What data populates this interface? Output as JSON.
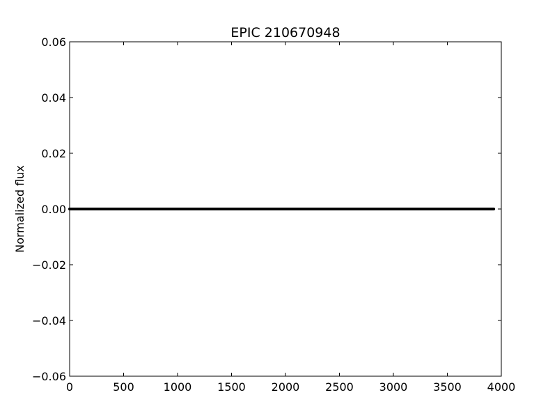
{
  "chart_data": {
    "type": "line",
    "title": "EPIC 210670948",
    "xlabel": "",
    "ylabel": "Normalized flux",
    "xlim": [
      0,
      4000
    ],
    "ylim": [
      -0.06,
      0.06
    ],
    "xticks": [
      0,
      500,
      1000,
      1500,
      2000,
      2500,
      3000,
      3500,
      4000
    ],
    "xtick_labels": [
      "0",
      "500",
      "1000",
      "1500",
      "2000",
      "2500",
      "3000",
      "3500",
      "4000"
    ],
    "yticks": [
      0.06,
      0.04,
      0.02,
      0.0,
      -0.02,
      -0.04,
      -0.06
    ],
    "ytick_labels": [
      "0.06",
      "0.04",
      "0.02",
      "0.00",
      "−0.02",
      "−0.04",
      "−0.06"
    ],
    "grid": false,
    "legend": "none",
    "line_color": "#000000",
    "series": [
      {
        "x": [
          0,
          3930
        ],
        "y": [
          0.0,
          0.0
        ]
      }
    ]
  }
}
